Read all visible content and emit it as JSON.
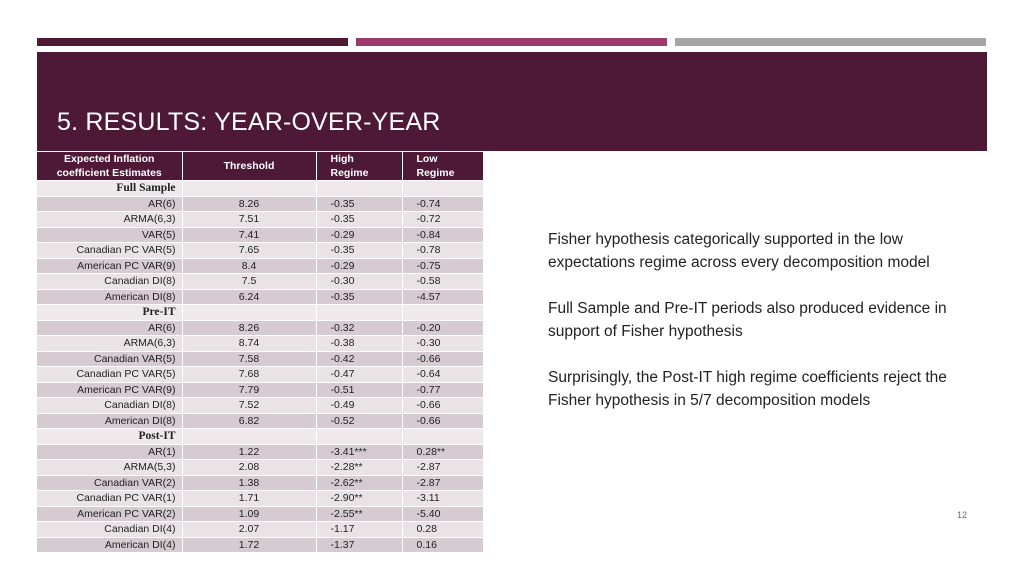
{
  "slide": {
    "title": "5. RESULTS: YEAR-OVER-YEAR",
    "page_number": "12"
  },
  "table": {
    "headers": {
      "col1_line1": "Expected Inflation",
      "col1_line2": "coefficient Estimates",
      "col2": "Threshold",
      "col3_line1": "High",
      "col3_line2": "Regime",
      "col4_line1": "Low",
      "col4_line2": "Regime"
    },
    "sections": [
      {
        "name": "Full Sample",
        "rows": [
          {
            "model": "AR(6)",
            "threshold": "8.26",
            "high": "-0.35",
            "low": "-0.74"
          },
          {
            "model": "ARMA(6,3)",
            "threshold": "7.51",
            "high": "-0.35",
            "low": "-0.72"
          },
          {
            "model": "VAR(5)",
            "threshold": "7.41",
            "high": "-0.29",
            "low": "-0.84"
          },
          {
            "model": "Canadian PC VAR(5)",
            "threshold": "7.65",
            "high": "-0.35",
            "low": "-0.78"
          },
          {
            "model": "American PC VAR(9)",
            "threshold": "8.4",
            "high": "-0.29",
            "low": "-0.75"
          },
          {
            "model": "Canadian DI(8)",
            "threshold": "7.5",
            "high": "-0.30",
            "low": "-0.58"
          },
          {
            "model": "American DI(8)",
            "threshold": "6.24",
            "high": "-0.35",
            "low": "-4.57"
          }
        ]
      },
      {
        "name": "Pre-IT",
        "rows": [
          {
            "model": "AR(6)",
            "threshold": "8.26",
            "high": "-0.32",
            "low": "-0.20"
          },
          {
            "model": "ARMA(6,3)",
            "threshold": "8.74",
            "high": "-0.38",
            "low": "-0.30"
          },
          {
            "model": "Canadian VAR(5)",
            "threshold": "7.58",
            "high": "-0.42",
            "low": "-0.66"
          },
          {
            "model": "Canadian PC VAR(5)",
            "threshold": "7.68",
            "high": "-0.47",
            "low": "-0.64"
          },
          {
            "model": "American PC VAR(9)",
            "threshold": "7.79",
            "high": "-0.51",
            "low": "-0.77"
          },
          {
            "model": "Canadian DI(8)",
            "threshold": "7.52",
            "high": "-0.49",
            "low": "-0.66"
          },
          {
            "model": "American DI(8)",
            "threshold": "6.82",
            "high": "-0.52",
            "low": "-0.66"
          }
        ]
      },
      {
        "name": "Post-IT",
        "rows": [
          {
            "model": "AR(1)",
            "threshold": "1.22",
            "high": "-3.41***",
            "low": "0.28**"
          },
          {
            "model": "ARMA(5,3)",
            "threshold": "2.08",
            "high": "-2.28**",
            "low": "-2.87"
          },
          {
            "model": "Canadian VAR(2)",
            "threshold": "1.38",
            "high": "-2.62**",
            "low": "-2.87"
          },
          {
            "model": "Canadian PC VAR(1)",
            "threshold": "1.71",
            "high": "-2.90**",
            "low": "-3.11"
          },
          {
            "model": "American PC VAR(2)",
            "threshold": "1.09",
            "high": "-2.55**",
            "low": "-5.40"
          },
          {
            "model": "Canadian DI(4)",
            "threshold": "2.07",
            "high": "-1.17",
            "low": "0.28"
          },
          {
            "model": "American DI(4)",
            "threshold": "1.72",
            "high": "-1.37",
            "low": "0.16"
          }
        ]
      }
    ]
  },
  "notes": [
    "Fisher hypothesis categorically supported in the low expectations regime across every decomposition model",
    "Full Sample and Pre-IT periods also produced evidence in support of Fisher hypothesis",
    "Surprisingly, the Post-IT high regime coefficients reject the Fisher hypothesis in 5/7 decomposition models"
  ]
}
